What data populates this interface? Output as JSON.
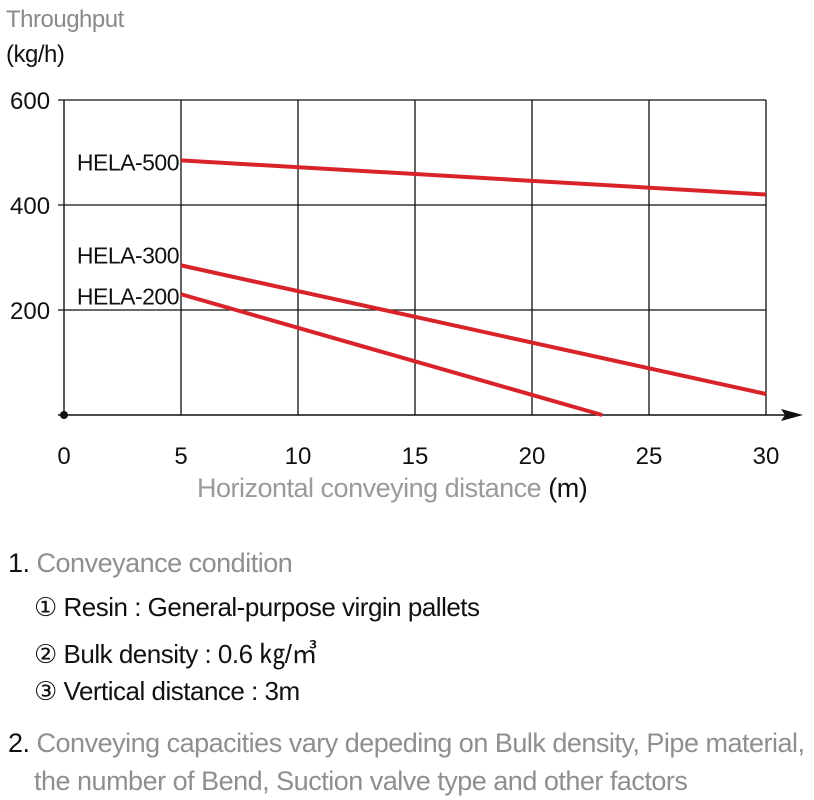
{
  "chart_data": {
    "type": "line",
    "ylabel": "Throughput",
    "yunit": "(kg/h)",
    "xlabel": "Horizontal conveying distance",
    "xunit": "(m)",
    "xlim": [
      0,
      30
    ],
    "ylim": [
      0,
      600
    ],
    "x_ticks": [
      "0",
      "5",
      "10",
      "15",
      "20",
      "25",
      "30"
    ],
    "y_ticks": [
      "200",
      "400",
      "600"
    ],
    "grid": true,
    "series": [
      {
        "name": "HELA-500",
        "x": [
          5,
          30
        ],
        "y": [
          485,
          420
        ],
        "color": "#d8232a"
      },
      {
        "name": "HELA-300",
        "x": [
          5,
          30
        ],
        "y": [
          285,
          40
        ],
        "color": "#d8232a"
      },
      {
        "name": "HELA-200",
        "x": [
          5,
          23
        ],
        "y": [
          230,
          0
        ],
        "color": "#d8232a"
      }
    ]
  },
  "notes": {
    "n1_num": "1.",
    "n1_text": "Conveyance condition",
    "n1_items": [
      "① Resin : General-purpose virgin pallets",
      "② Bulk density : 0.6 ㎏/㎥",
      "③ Vertical distance : 3m"
    ],
    "n2_num": "2.",
    "n2_line1": "Conveying capacities vary depeding on Bulk density, Pipe material,",
    "n2_line2": "the number of Bend, Suction valve type and other factors"
  }
}
